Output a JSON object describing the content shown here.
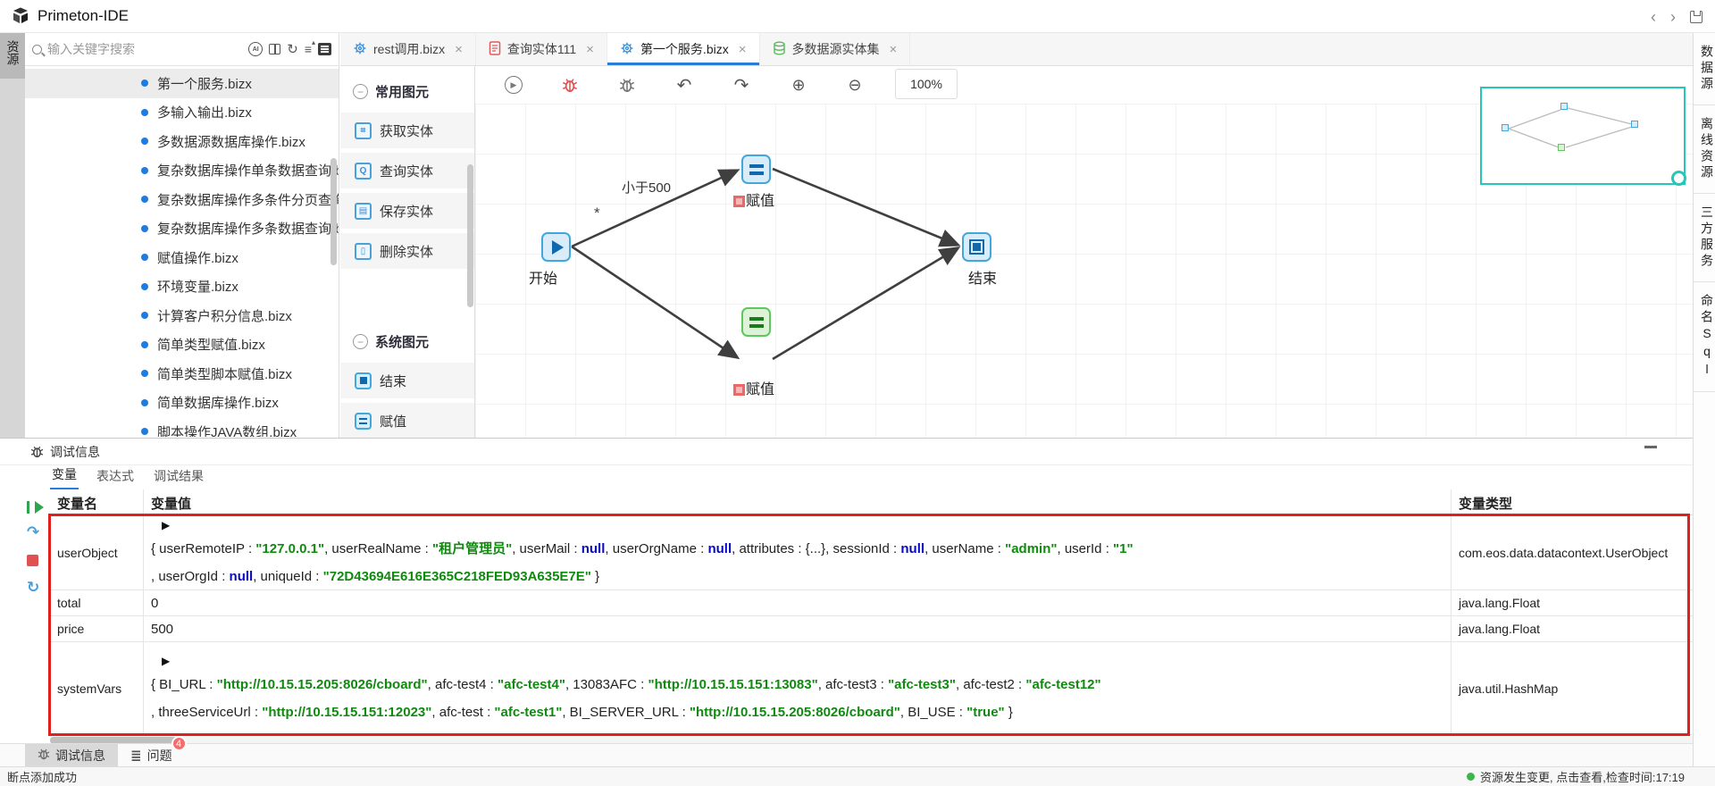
{
  "title_bar": {
    "app_title": "Primeton-IDE"
  },
  "left_rail": {
    "label": "资源"
  },
  "explorer": {
    "search_placeholder": "输入关键字搜索",
    "selected_index": 0,
    "items": [
      "第一个服务.bizx",
      "多输入输出.bizx",
      "多数据源数据库操作.bizx",
      "复杂数据库操作单条数据查询.bizx",
      "复杂数据库操作多条件分页查询.bizx",
      "复杂数据库操作多条数据查询.bizx",
      "赋值操作.bizx",
      "环境变量.bizx",
      "计算客户积分信息.bizx",
      "简单类型赋值.bizx",
      "简单类型脚本赋值.bizx",
      "简单数据库操作.bizx",
      "脚本操作JAVA数组.bizx"
    ]
  },
  "tabs": [
    {
      "label": "rest调用.bizx",
      "icon": "gear",
      "active": false
    },
    {
      "label": "查询实体111",
      "icon": "file-red",
      "active": false
    },
    {
      "label": "第一个服务.bizx",
      "icon": "gear",
      "active": true
    },
    {
      "label": "多数据源实体集",
      "icon": "db-green",
      "active": false
    }
  ],
  "palette": {
    "groups": [
      {
        "header": "常用图元",
        "items": [
          {
            "label": "获取实体",
            "icon": "chip-fetch"
          },
          {
            "label": "查询实体",
            "icon": "chip-query"
          },
          {
            "label": "保存实体",
            "icon": "chip-save"
          },
          {
            "label": "删除实体",
            "icon": "chip-delete"
          }
        ]
      },
      {
        "header": "系统图元",
        "items": [
          {
            "label": "结束",
            "icon": "end"
          },
          {
            "label": "赋值",
            "icon": "assign"
          }
        ]
      }
    ]
  },
  "canvas": {
    "zoom_level": "100%",
    "condition_label": "小于500",
    "star_label": "*",
    "nodes": [
      {
        "label": "开始"
      },
      {
        "label": "赋值"
      },
      {
        "label": "赋值"
      },
      {
        "label": "结束"
      }
    ]
  },
  "right_rail": {
    "items": [
      "数据源",
      "离线资源",
      "三方服务",
      "命名Sql"
    ]
  },
  "debug_panel": {
    "title": "调试信息",
    "tabs": [
      "变量",
      "表达式",
      "调试结果"
    ],
    "active_tab_index": 0,
    "columns": [
      "变量名",
      "变量值",
      "变量类型"
    ],
    "rows": [
      {
        "name": "userObject",
        "type": "com.eos.data.datacontext.UserObject",
        "caret": true,
        "lines": [
          [
            {
              "k": "p",
              "v": "{ userRemoteIP :  "
            },
            {
              "k": "s",
              "v": "\"127.0.0.1\""
            },
            {
              "k": "p",
              "v": ",  userRealName :  "
            },
            {
              "k": "s",
              "v": "\"租户管理员\""
            },
            {
              "k": "p",
              "v": ",  userMail :  "
            },
            {
              "k": "n",
              "v": "null"
            },
            {
              "k": "p",
              "v": ",  userOrgName :  "
            },
            {
              "k": "n",
              "v": "null"
            },
            {
              "k": "p",
              "v": ",  attributes :  {...},  sessionId :  "
            },
            {
              "k": "n",
              "v": "null"
            },
            {
              "k": "p",
              "v": ",  userName :  "
            },
            {
              "k": "s",
              "v": "\"admin\""
            },
            {
              "k": "p",
              "v": ",  userId :  "
            },
            {
              "k": "s",
              "v": "\"1\""
            }
          ],
          [
            {
              "k": "p",
              "v": ",  userOrgId :  "
            },
            {
              "k": "n",
              "v": "null"
            },
            {
              "k": "p",
              "v": ",  uniqueId :  "
            },
            {
              "k": "s",
              "v": "\"72D43694E616E365C218FED93A635E7E\""
            },
            {
              "k": "p",
              "v": " }"
            }
          ]
        ]
      },
      {
        "name": "total",
        "type": "java.lang.Float",
        "caret": false,
        "lines": [
          [
            {
              "k": "p",
              "v": "0"
            }
          ]
        ]
      },
      {
        "name": "price",
        "type": "java.lang.Float",
        "caret": false,
        "lines": [
          [
            {
              "k": "p",
              "v": "500"
            }
          ]
        ]
      },
      {
        "name": "systemVars",
        "type": "java.util.HashMap",
        "caret": true,
        "lines": [
          [
            {
              "k": "p",
              "v": "{ BI_URL :  "
            },
            {
              "k": "s",
              "v": "\"http://10.15.15.205:8026/cboard\""
            },
            {
              "k": "p",
              "v": ",  afc-test4 :  "
            },
            {
              "k": "s",
              "v": "\"afc-test4\""
            },
            {
              "k": "p",
              "v": ",  13083AFC :  "
            },
            {
              "k": "s",
              "v": "\"http://10.15.15.151:13083\""
            },
            {
              "k": "p",
              "v": ",  afc-test3 :  "
            },
            {
              "k": "s",
              "v": "\"afc-test3\""
            },
            {
              "k": "p",
              "v": ",  afc-test2 :  "
            },
            {
              "k": "s",
              "v": "\"afc-test12\""
            }
          ],
          [
            {
              "k": "p",
              "v": ",  threeServiceUrl :  "
            },
            {
              "k": "s",
              "v": "\"http://10.15.15.151:12023\""
            },
            {
              "k": "p",
              "v": ",  afc-test :  "
            },
            {
              "k": "s",
              "v": "\"afc-test1\""
            },
            {
              "k": "p",
              "v": ",  BI_SERVER_URL :  "
            },
            {
              "k": "s",
              "v": "\"http://10.15.15.205:8026/cboard\""
            },
            {
              "k": "p",
              "v": ",  BI_USE :  "
            },
            {
              "k": "s",
              "v": "\"true\""
            },
            {
              "k": "p",
              "v": " }"
            }
          ]
        ]
      }
    ]
  },
  "bottom_tabs": [
    {
      "label": "调试信息",
      "active": true,
      "badge": ""
    },
    {
      "label": "问题",
      "active": false,
      "badge": "4"
    }
  ],
  "status_bar": {
    "left": "断点添加成功",
    "right": "资源发生变更, 点击查看,检查时间:17:19"
  }
}
